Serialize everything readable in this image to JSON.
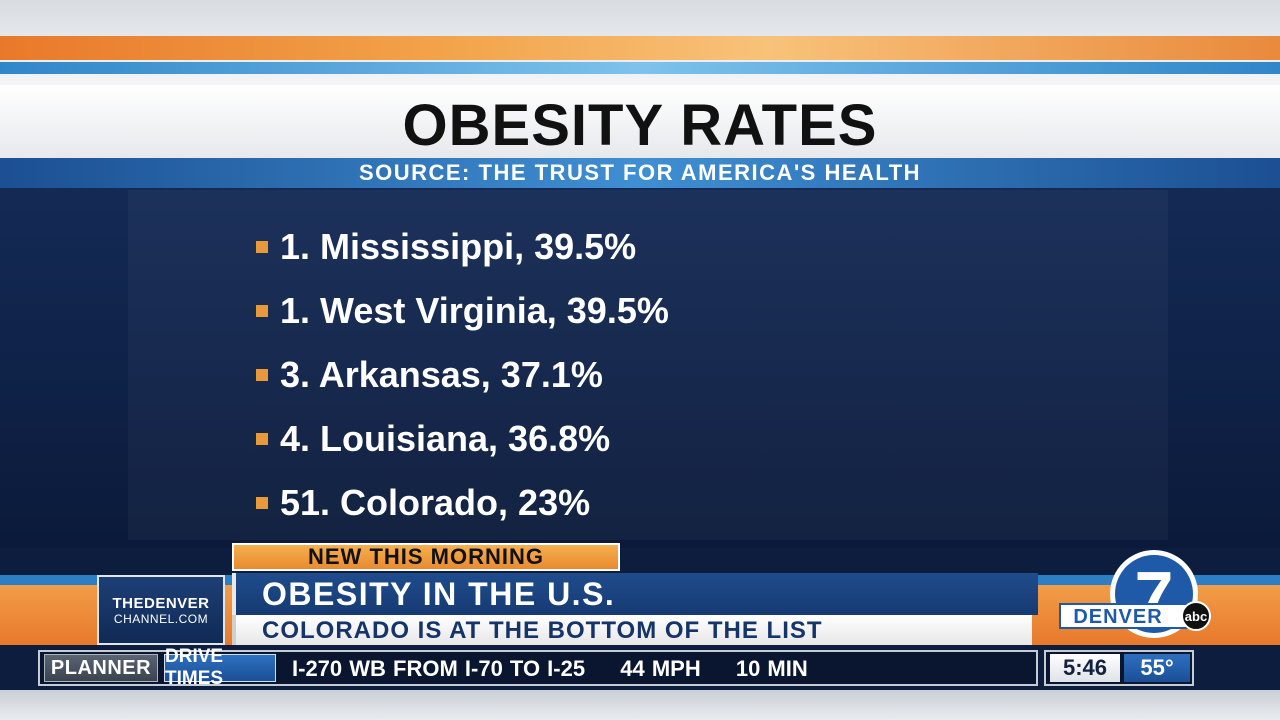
{
  "graphic": {
    "title": "OBESITY RATES",
    "source": "SOURCE: THE TRUST FOR AMERICA'S HEALTH",
    "items": [
      {
        "label": "1. Mississippi, 39.5%"
      },
      {
        "label": "1. West Virginia, 39.5%"
      },
      {
        "label": "3. Arkansas, 37.1%"
      },
      {
        "label": "4. Louisiana, 36.8%"
      },
      {
        "label": "51. Colorado, 23%"
      }
    ]
  },
  "lower_third": {
    "kicker": "NEW THIS MORNING",
    "headline": "OBESITY IN THE U.S.",
    "subhead": "COLORADO IS AT THE BOTTOM OF THE LIST",
    "channel_logo_line1": "THEDENVER",
    "channel_logo_line2": "CHANNEL.COM",
    "station_logo_text": "DENVER",
    "network_text": "abc",
    "station_number": "7"
  },
  "ticker": {
    "planner_label": "PLANNER",
    "section_label": "DRIVE TIMES",
    "route": "I-270 WB FROM I-70 TO I-25",
    "speed": "44 MPH",
    "duration": "10 MIN",
    "time": "5:46",
    "temperature": "55°"
  },
  "colors": {
    "accent_orange": "#e89a3b",
    "panel_navy": "#0f2248",
    "brand_blue": "#1b4f96"
  }
}
